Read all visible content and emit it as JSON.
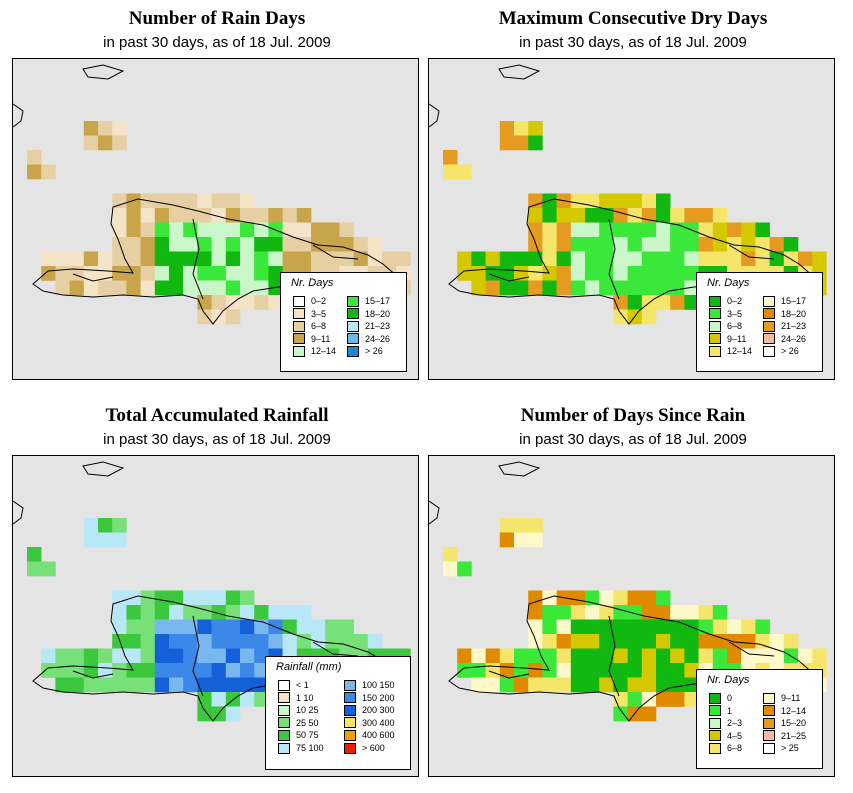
{
  "panels": [
    {
      "id": "rain_days",
      "title": "Number of Rain Days",
      "subtitle": "in past 30 days, as of  18 Jul. 2009",
      "legend": {
        "title": "Nr. Days",
        "items": [
          {
            "label": "0–2",
            "color": "#ffffff"
          },
          {
            "label": "3–5",
            "color": "#f3e3c7"
          },
          {
            "label": "6–8",
            "color": "#e6cfa2"
          },
          {
            "label": "9–11",
            "color": "#c8a44a"
          },
          {
            "label": "12–14",
            "color": "#c9f7c9"
          },
          {
            "label": "15–17",
            "color": "#3ae83a"
          },
          {
            "label": "18–20",
            "color": "#10b810"
          },
          {
            "label": "21–23",
            "color": "#b8e8f8"
          },
          {
            "label": "24–26",
            "color": "#6ab8ec"
          },
          {
            "label": "> 26",
            "color": "#1a8ad6"
          }
        ]
      }
    },
    {
      "id": "max_dry",
      "title": "Maximum Consecutive Dry Days",
      "subtitle": "in past 30 days, as of  18 Jul. 2009",
      "legend": {
        "title": "Nr. Days",
        "items": [
          {
            "label": "0–2",
            "color": "#10b810"
          },
          {
            "label": "3–5",
            "color": "#3ae83a"
          },
          {
            "label": "6–8",
            "color": "#c9f7c9"
          },
          {
            "label": "9–11",
            "color": "#d4c800"
          },
          {
            "label": "12–14",
            "color": "#f5e66b"
          },
          {
            "label": "15–17",
            "color": "#fff8c8"
          },
          {
            "label": "18–20",
            "color": "#e08a00"
          },
          {
            "label": "21–23",
            "color": "#e59a20"
          },
          {
            "label": "24–26",
            "color": "#f6b8a0"
          },
          {
            "label": "> 26",
            "color": "#ffffff"
          }
        ]
      }
    },
    {
      "id": "total_rain",
      "title": "Total Accumulated Rainfall",
      "subtitle": "in past 30 days, as of  18 Jul. 2009",
      "legend": {
        "title": "Rainfall (mm)",
        "items": [
          {
            "label": "< 1",
            "color": "#ffffff"
          },
          {
            "label": "1   10",
            "color": "#f3e3c7"
          },
          {
            "label": "10   25",
            "color": "#c9f7c9"
          },
          {
            "label": "25   50",
            "color": "#78e078"
          },
          {
            "label": "50   75",
            "color": "#3cc83c"
          },
          {
            "label": "75  100",
            "color": "#b8e8f8"
          },
          {
            "label": "100  150",
            "color": "#78b8ee"
          },
          {
            "label": "150  200",
            "color": "#3c88e8"
          },
          {
            "label": "200  300",
            "color": "#1460d8"
          },
          {
            "label": "300  400",
            "color": "#f5e66b"
          },
          {
            "label": "400  600",
            "color": "#f5a000"
          },
          {
            "label": "> 600",
            "color": "#e82000"
          }
        ]
      }
    },
    {
      "id": "days_since",
      "title": "Number of Days Since Rain",
      "subtitle": "in past 30 days, as of  18 Jul. 2009",
      "legend": {
        "title": "Nr. Days",
        "items": [
          {
            "label": "0",
            "color": "#10b810"
          },
          {
            "label": "1",
            "color": "#3ae83a"
          },
          {
            "label": "2–3",
            "color": "#c9f7c9"
          },
          {
            "label": "4–5",
            "color": "#d4c800"
          },
          {
            "label": "6–8",
            "color": "#f5e66b"
          },
          {
            "label": "9–11",
            "color": "#fff8c8"
          },
          {
            "label": "12–14",
            "color": "#e08a00"
          },
          {
            "label": "15–20",
            "color": "#e59a20"
          },
          {
            "label": "21–25",
            "color": "#f6b8a0"
          },
          {
            "label": "> 25",
            "color": "#ffffff"
          }
        ]
      }
    }
  ]
}
